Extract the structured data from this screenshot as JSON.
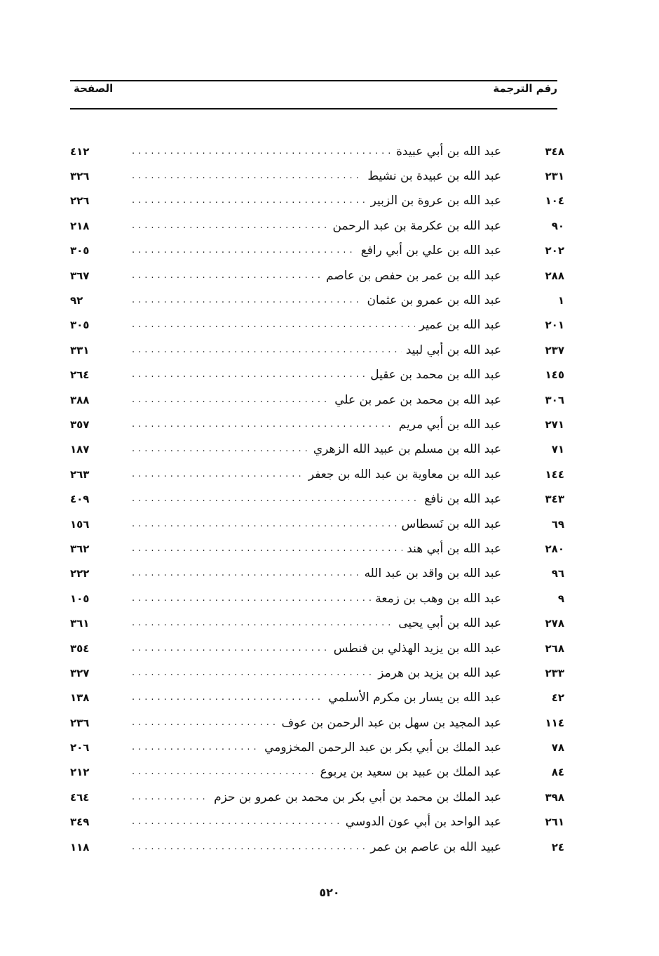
{
  "header": {
    "entry_number_label": "رقم الترجمة",
    "page_label": "الصفحة"
  },
  "entries": [
    {
      "num": "٣٤٨",
      "name": "عبد الله بن أبي عبيدة",
      "page": "٤١٢"
    },
    {
      "num": "٢٣١",
      "name": "عبد الله بن عبيدة بن نشيط",
      "page": "٣٢٦"
    },
    {
      "num": "١٠٤",
      "name": "عبد الله بن عروة بن الزبير",
      "page": "٢٢٦"
    },
    {
      "num": "٩٠",
      "name": "عبد الله بن عكرمة بن عبد الرحمن",
      "page": "٢١٨"
    },
    {
      "num": "٢٠٢",
      "name": "عبد الله بن علي بن أبي رافع",
      "page": "٣٠٥"
    },
    {
      "num": "٢٨٨",
      "name": "عبد الله بن عمر بن حفص بن عاصم",
      "page": "٣٦٧"
    },
    {
      "num": "١",
      "name": "عبد الله بن عمرو بن عثمان",
      "page": "٩٢"
    },
    {
      "num": "٢٠١",
      "name": "عبد الله بن عمير",
      "page": "٣٠٥"
    },
    {
      "num": "٢٣٧",
      "name": "عبد الله بن أبي لبيد",
      "page": "٣٣١"
    },
    {
      "num": "١٤٥",
      "name": "عبد الله بن محمد بن عقيل",
      "page": "٢٦٤"
    },
    {
      "num": "٣٠٦",
      "name": "عبد الله بن محمد بن عمر بن علي",
      "page": "٣٨٨"
    },
    {
      "num": "٢٧١",
      "name": "عبد الله بن أبي مريم",
      "page": "٣٥٧"
    },
    {
      "num": "٧١",
      "name": "عبد الله بن مسلم بن عبيد الله الزهري",
      "page": "١٨٧"
    },
    {
      "num": "١٤٤",
      "name": "عبد الله بن معاوية بن عبد الله بن جعفر",
      "page": "٢٦٣"
    },
    {
      "num": "٣٤٣",
      "name": "عبد الله بن نافع",
      "page": "٤٠٩"
    },
    {
      "num": "٦٩",
      "name": "عبد الله بن نَسطاس",
      "page": "١٥٦"
    },
    {
      "num": "٢٨٠",
      "name": "عبد الله بن أبي هند",
      "page": "٣٦٢"
    },
    {
      "num": "٩٦",
      "name": "عبد الله بن واقد بن عبد الله",
      "page": "٢٢٢"
    },
    {
      "num": "٩",
      "name": "عبد الله بن وهب بن زمعة",
      "page": "١٠٥"
    },
    {
      "num": "٢٧٨",
      "name": "عبد الله بن أبي يحيى",
      "page": "٣٦١"
    },
    {
      "num": "٢٦٨",
      "name": "عبد الله بن يزيد الهذلي بن فنطس",
      "page": "٣٥٤"
    },
    {
      "num": "٢٣٣",
      "name": "عبد الله بن يزيد بن هرمز",
      "page": "٣٢٧"
    },
    {
      "num": "٤٢",
      "name": "عبد الله بن يسار بن مكرم الأسلمي",
      "page": "١٣٨"
    },
    {
      "num": "١١٤",
      "name": "عبد المجيد بن سهل بن عبد الرحمن بن عوف",
      "page": "٢٣٦"
    },
    {
      "num": "٧٨",
      "name": "عبد الملك بن أبي بكر بن عبد الرحمن المخزومي",
      "page": "٢٠٦"
    },
    {
      "num": "٨٤",
      "name": "عبد الملك بن عبيد بن سعيد بن يربوع",
      "page": "٢١٢"
    },
    {
      "num": "٣٩٨",
      "name": "عبد الملك بن محمد بن أبي بكر بن محمد بن عمرو بن حزم",
      "page": "٤٦٤"
    },
    {
      "num": "٢٦١",
      "name": "عبد الواحد بن أبي عون الدوسي",
      "page": "٣٤٩"
    },
    {
      "num": "٢٤",
      "name": "عبيد الله بن عاصم بن عمر",
      "page": "١١٨"
    }
  ],
  "footer": {
    "page_number": "٥٢٠"
  }
}
